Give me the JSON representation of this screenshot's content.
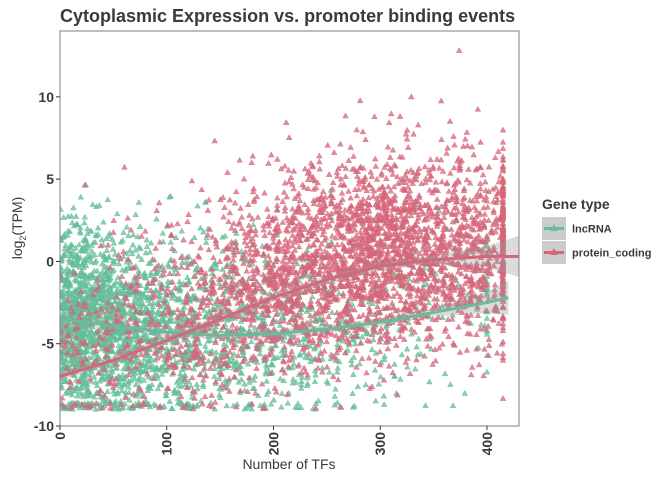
{
  "chart_data": {
    "type": "scatter",
    "title": "Cytoplasmic Expression vs. promoter binding events",
    "xlabel": "Number of TFs",
    "ylabel_prefix": "log",
    "ylabel_sub": "2",
    "ylabel_suffix": "(TPM)",
    "xlim": [
      0,
      430
    ],
    "ylim": [
      -10,
      14
    ],
    "xticks": [
      0,
      100,
      200,
      300,
      400
    ],
    "yticks": [
      -10,
      -5,
      0,
      5,
      10
    ],
    "xtick_labels": [
      "0",
      "100",
      "200",
      "300",
      "400"
    ],
    "ytick_labels": [
      "-10",
      "-5",
      "0",
      "5",
      "10"
    ],
    "grid": false,
    "legend": {
      "title": "Gene type",
      "position": "right",
      "entries": [
        "lncRNA",
        "protein_coding"
      ]
    },
    "series": [
      {
        "name": "lncRNA",
        "color": "#66bd9a",
        "marker": "triangle",
        "point_count": 2500,
        "x_range": [
          0,
          400
        ],
        "x_mode": 0,
        "y_center_at": [
          [
            0,
            -3.5
          ],
          [
            150,
            -4.5
          ],
          [
            300,
            -3.8
          ],
          [
            400,
            -2.5
          ]
        ],
        "y_spread": 2.8,
        "y_floor": -9,
        "trend": {
          "x": [
            0,
            50,
            100,
            150,
            200,
            250,
            300,
            350,
            400,
            420
          ],
          "y": [
            -3.5,
            -3.9,
            -4.3,
            -4.5,
            -4.4,
            -4.1,
            -3.7,
            -3.1,
            -2.5,
            -2.2
          ]
        }
      },
      {
        "name": "protein_coding",
        "color": "#d4677a",
        "marker": "triangle",
        "point_count": 3200,
        "x_range": [
          0,
          415
        ],
        "x_mode": 290,
        "y_center_at": [
          [
            0,
            -5.5
          ],
          [
            100,
            -3.5
          ],
          [
            200,
            -1.0
          ],
          [
            300,
            0.5
          ],
          [
            400,
            0.8
          ]
        ],
        "y_spread": 3.0,
        "y_floor": -9,
        "max_point": [
          374,
          12.8
        ],
        "trend": {
          "x": [
            0,
            50,
            100,
            150,
            200,
            250,
            300,
            350,
            400,
            430
          ],
          "y": [
            -7.0,
            -6.0,
            -4.8,
            -3.5,
            -2.2,
            -1.1,
            -0.3,
            0.1,
            0.3,
            0.3
          ]
        }
      }
    ]
  }
}
